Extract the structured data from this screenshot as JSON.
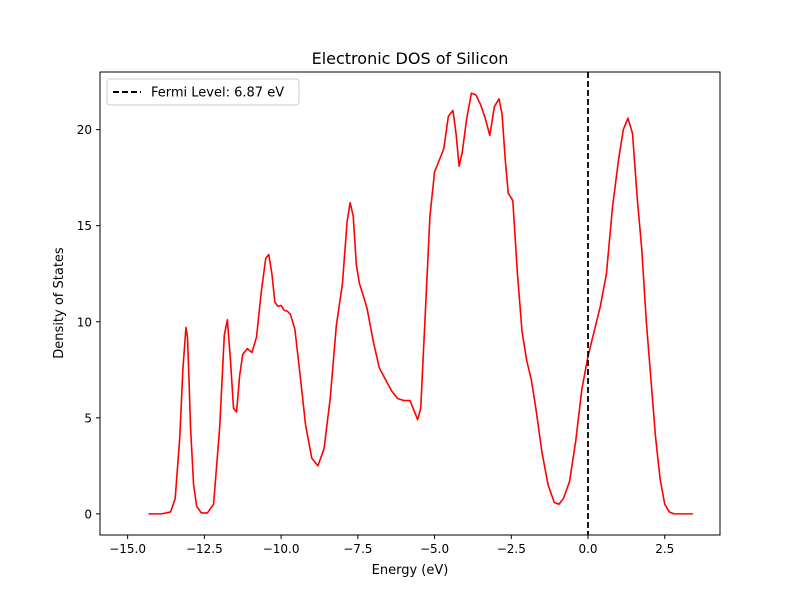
{
  "chart_data": {
    "type": "line",
    "title": "Electronic DOS of Silicon",
    "xlabel": "Energy (eV)",
    "ylabel": "Density of States",
    "xlim": [
      -15.9,
      4.3
    ],
    "ylim": [
      -1.1,
      23.0
    ],
    "xticks": [
      -15.0,
      -12.5,
      -10.0,
      -7.5,
      -5.0,
      -2.5,
      0.0,
      2.5
    ],
    "xtick_labels": [
      "−15.0",
      "−12.5",
      "−10.0",
      "−7.5",
      "−5.0",
      "−2.5",
      "0.0",
      "2.5"
    ],
    "yticks": [
      0,
      5,
      10,
      15,
      20
    ],
    "ytick_labels": [
      "0",
      "5",
      "10",
      "15",
      "20"
    ],
    "grid": false,
    "legend_position": "top-left",
    "series": [
      {
        "color": "#ff0000",
        "x": [
          -14.3,
          -13.9,
          -13.6,
          -13.45,
          -13.3,
          -13.2,
          -13.1,
          -13.05,
          -13.0,
          -12.95,
          -12.85,
          -12.75,
          -12.6,
          -12.4,
          -12.2,
          -12.0,
          -11.85,
          -11.75,
          -11.65,
          -11.55,
          -11.45,
          -11.35,
          -11.25,
          -11.1,
          -10.95,
          -10.8,
          -10.65,
          -10.5,
          -10.4,
          -10.3,
          -10.2,
          -10.1,
          -10.0,
          -9.9,
          -9.8,
          -9.7,
          -9.55,
          -9.4,
          -9.2,
          -9.0,
          -8.8,
          -8.6,
          -8.4,
          -8.2,
          -8.0,
          -7.85,
          -7.75,
          -7.65,
          -7.55,
          -7.45,
          -7.35,
          -7.2,
          -7.0,
          -6.8,
          -6.6,
          -6.4,
          -6.2,
          -6.0,
          -5.8,
          -5.65,
          -5.55,
          -5.45,
          -5.3,
          -5.15,
          -5.0,
          -4.85,
          -4.7,
          -4.55,
          -4.4,
          -4.3,
          -4.2,
          -4.1,
          -3.95,
          -3.8,
          -3.65,
          -3.5,
          -3.35,
          -3.2,
          -3.05,
          -2.9,
          -2.8,
          -2.7,
          -2.6,
          -2.45,
          -2.3,
          -2.15,
          -2.0,
          -1.85,
          -1.7,
          -1.5,
          -1.3,
          -1.1,
          -0.95,
          -0.8,
          -0.6,
          -0.4,
          -0.2,
          0.0,
          0.2,
          0.4,
          0.6,
          0.8,
          1.0,
          1.15,
          1.3,
          1.45,
          1.6,
          1.75,
          1.9,
          2.05,
          2.2,
          2.35,
          2.5,
          2.65,
          2.8,
          3.0,
          3.2,
          3.4
        ],
        "y": [
          0.0,
          0.0,
          0.1,
          0.8,
          4.0,
          7.5,
          9.7,
          9.2,
          7.0,
          4.5,
          1.5,
          0.4,
          0.05,
          0.05,
          0.5,
          4.5,
          9.3,
          10.1,
          8.0,
          5.5,
          5.3,
          7.2,
          8.3,
          8.6,
          8.4,
          9.2,
          11.5,
          13.3,
          13.5,
          12.5,
          11.0,
          10.8,
          10.85,
          10.6,
          10.55,
          10.4,
          9.6,
          7.5,
          4.6,
          2.9,
          2.5,
          3.4,
          6.0,
          9.8,
          12.0,
          15.2,
          16.2,
          15.5,
          13.0,
          12.0,
          11.5,
          10.7,
          9.0,
          7.6,
          7.0,
          6.4,
          6.0,
          5.9,
          5.9,
          5.3,
          4.9,
          5.5,
          10.5,
          15.5,
          17.8,
          18.4,
          19.0,
          20.7,
          21.0,
          19.8,
          18.1,
          18.8,
          20.6,
          21.9,
          21.8,
          21.3,
          20.6,
          19.7,
          21.2,
          21.6,
          20.8,
          18.5,
          16.7,
          16.3,
          12.5,
          9.5,
          8.0,
          7.0,
          5.5,
          3.2,
          1.5,
          0.6,
          0.5,
          0.8,
          1.7,
          3.8,
          6.5,
          8.2,
          9.5,
          10.8,
          12.5,
          16.0,
          18.5,
          20.0,
          20.6,
          19.8,
          16.5,
          13.8,
          10.0,
          7.0,
          4.0,
          1.8,
          0.5,
          0.1,
          0.0,
          0.0,
          0.0,
          0.0
        ]
      }
    ],
    "reference_line": {
      "x": 0.0,
      "color": "#000000",
      "style": "dashed",
      "label": "Fermi Level: 6.87 eV"
    }
  }
}
